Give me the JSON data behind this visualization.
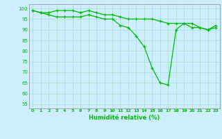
{
  "xlabel": "Humidité relative (%)",
  "background_color": "#cceeff",
  "line_color": "#00bb00",
  "marker": "+",
  "xlim": [
    -0.5,
    23.5
  ],
  "ylim": [
    53,
    102
  ],
  "yticks": [
    55,
    60,
    65,
    70,
    75,
    80,
    85,
    90,
    95,
    100
  ],
  "xticks": [
    0,
    1,
    2,
    3,
    4,
    5,
    6,
    7,
    8,
    9,
    10,
    11,
    12,
    13,
    14,
    15,
    16,
    17,
    18,
    19,
    20,
    21,
    22,
    23
  ],
  "series1": [
    99,
    98,
    98,
    99,
    99,
    99,
    98,
    99,
    98,
    97,
    97,
    96,
    95,
    95,
    95,
    95,
    94,
    93,
    93,
    93,
    91,
    91,
    90,
    92
  ],
  "series2": [
    99,
    98,
    97,
    96,
    96,
    96,
    96,
    97,
    96,
    95,
    95,
    92,
    91,
    87,
    82,
    72,
    65,
    64,
    90,
    93,
    93,
    91,
    90,
    91
  ]
}
